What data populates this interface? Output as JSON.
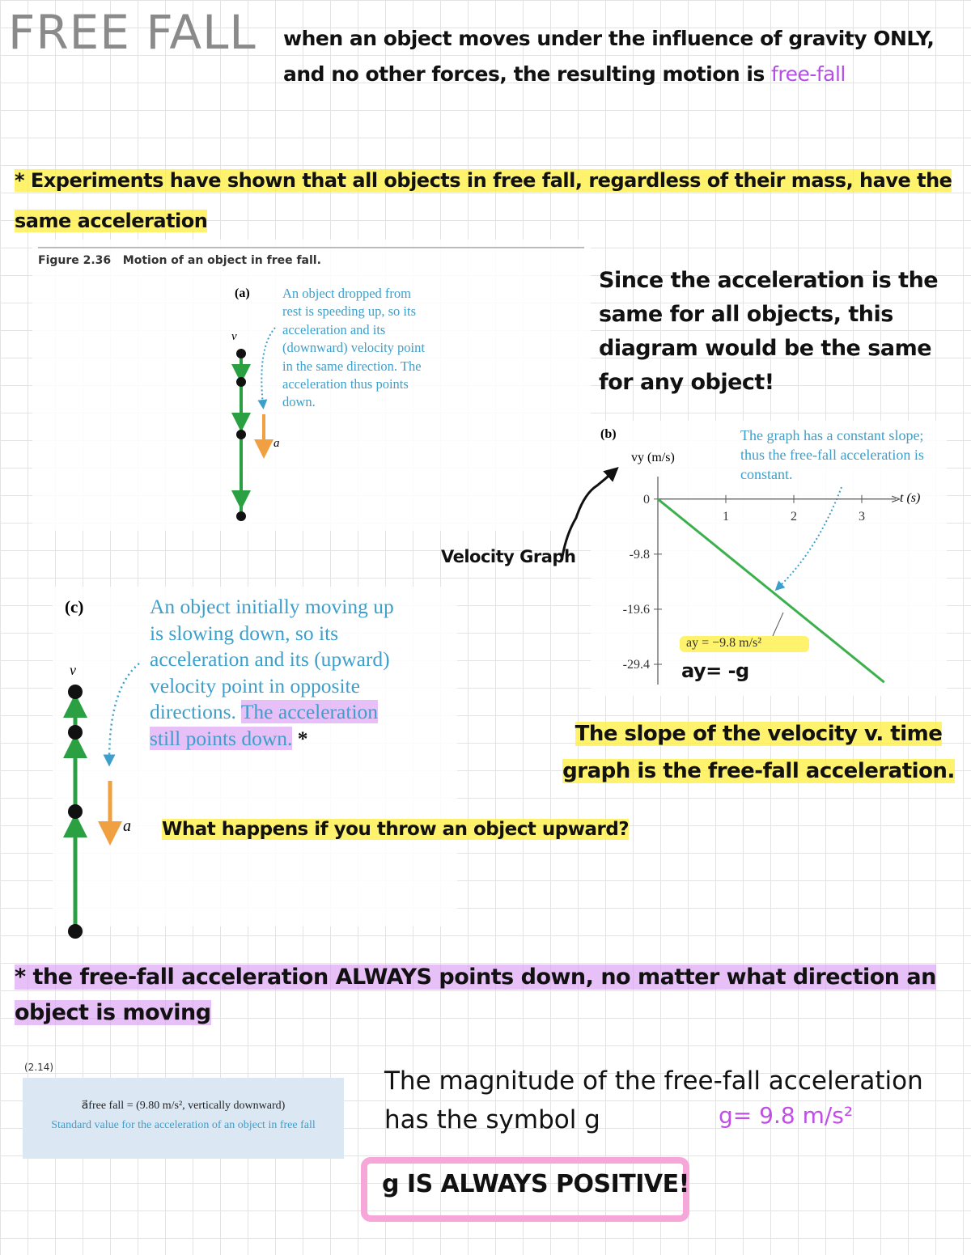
{
  "title": "FREE FALL",
  "definition": {
    "text": "when an object moves under the influence of gravity ONLY, and no other forces, the resulting motion is",
    "term": "free-fall"
  },
  "note_mass": "* Experiments have shown that all objects in free fall, regardless of their mass, have the same acceleration",
  "figure": {
    "label": "Figure 2.36",
    "caption": "Motion of an object in free fall.",
    "part_a": {
      "label": "(a)",
      "text": "An object dropped from rest is speeding up, so its acceleration and its (downward) velocity point in the same direction. The acceleration thus points down.",
      "velocity_symbol": "v⃗",
      "acceleration_symbol": "a⃗"
    },
    "part_b": {
      "label": "(b)",
      "graph": {
        "type": "line",
        "y_label": "vy (m/s)",
        "x_label": "t (s)",
        "annotation": "The graph has a constant slope; thus the free-fall acceleration is constant.",
        "slope_label": "ay = −9.8 m/s²",
        "x": [
          0,
          3.33
        ],
        "values": [
          0,
          -32.6
        ],
        "color": "#3cb04c",
        "xlim": [
          0,
          3.5
        ],
        "ylim": [
          -33,
          4
        ],
        "xticks": [
          1,
          2,
          3
        ],
        "yticks": [
          0,
          -9.8,
          -19.6,
          -29.4
        ]
      }
    },
    "part_c": {
      "label": "(c)",
      "text_plain": "An object initially moving up is slowing down, so its acceleration and its (upward) velocity point in opposite directions.",
      "text_highlighted": "The acceleration still points down.",
      "velocity_symbol": "v⃗",
      "acceleration_symbol": "a⃗"
    }
  },
  "note_any_object": "Since the acceleration is the same for all objects, this diagram would be the same for any object!",
  "graph_note": "Velocity Graph",
  "ay_note": "ay= -g",
  "star": "*",
  "question": "What happens if you throw an object upward?",
  "note_slope": "The slope of the velocity v. time graph is the free-fall acceleration.",
  "note_direction": "* the free-fall acceleration ALWAYS points down, no matter what direction an object is moving",
  "equation": {
    "number": "(2.14)",
    "formula": "a⃗free fall = (9.80 m/s², vertically downward)",
    "description": "Standard value for the acceleration of an object in free fall"
  },
  "note_magnitude": "The magnitude of the free-fall acceleration has the symbol g",
  "g_value": "g= 9.8 m/s²",
  "note_positive": "g IS ALWAYS POSITIVE!"
}
